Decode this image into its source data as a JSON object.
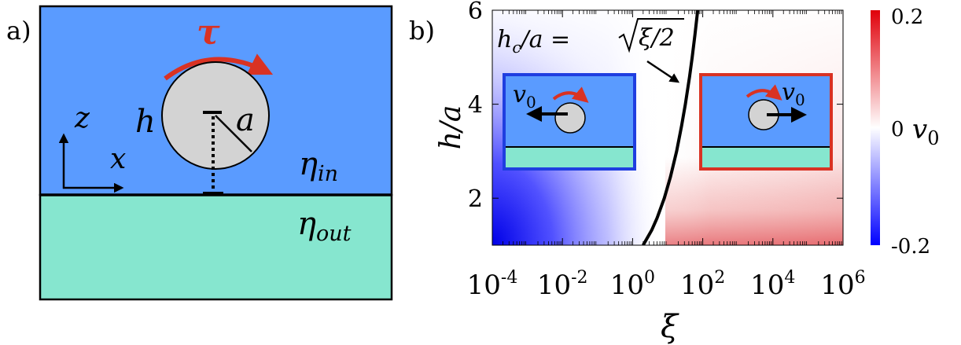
{
  "panel_a": {
    "label": "a)",
    "torque": "τ",
    "height": "h",
    "radius": "a",
    "axis_z": "z",
    "axis_x": "x",
    "eta_in_base": "η",
    "eta_in_sub": "in",
    "eta_out_base": "η",
    "eta_out_sub": "out",
    "colors": {
      "upper_fluid": "#5a9bff",
      "lower_fluid": "#86e6cf",
      "sphere": "#d3d3d3",
      "torque_arrow": "#d93223"
    }
  },
  "panel_b": {
    "label": "b)",
    "curve_label_lhs": "h",
    "curve_label_sub": "c",
    "curve_label_mid": "/a = ",
    "curve_label_rad": "ξ/2",
    "inset_left_velocity_base": "v",
    "inset_left_velocity_sub": "0",
    "inset_right_velocity_base": "v",
    "inset_right_velocity_sub": "0",
    "colorbar": {
      "title_base": "v",
      "title_sub": "0",
      "tick_max": "0.2",
      "tick_mid": "0",
      "tick_min": "-0.2",
      "range": [
        -0.2,
        0.2
      ],
      "colors": {
        "negative": "#0000ff",
        "zero": "#ffffff",
        "positive": "#e0000a"
      }
    }
  },
  "chart_data": {
    "type": "heatmap",
    "title": "",
    "xlabel": "ξ",
    "ylabel": "h/a",
    "x_scale": "log",
    "xlim": [
      0.0001,
      1000000
    ],
    "ylim": [
      1,
      6
    ],
    "xticks": [
      {
        "value": 0.0001,
        "base": "10",
        "exp": "-4"
      },
      {
        "value": 0.01,
        "base": "10",
        "exp": "-2"
      },
      {
        "value": 1,
        "base": "10",
        "exp": "0"
      },
      {
        "value": 100,
        "base": "10",
        "exp": "2"
      },
      {
        "value": 10000,
        "base": "10",
        "exp": "4"
      },
      {
        "value": 1000000,
        "base": "10",
        "exp": "6"
      }
    ],
    "yticks": [
      {
        "value": 2,
        "label": "2"
      },
      {
        "value": 4,
        "label": "4"
      },
      {
        "value": 6,
        "label": "6"
      }
    ],
    "series": [
      {
        "type": "line",
        "points": [
          {
            "x": 2,
            "y": 1
          },
          {
            "x": 3.5,
            "y": 1.32
          },
          {
            "x": 5,
            "y": 1.58
          },
          {
            "x": 8,
            "y": 2
          },
          {
            "x": 12,
            "y": 2.45
          },
          {
            "x": 18,
            "y": 3
          },
          {
            "x": 25,
            "y": 3.54
          },
          {
            "x": 32,
            "y": 4
          },
          {
            "x": 42,
            "y": 4.58
          },
          {
            "x": 50,
            "y": 5
          },
          {
            "x": 60,
            "y": 5.48
          },
          {
            "x": 72,
            "y": 6
          }
        ]
      }
    ],
    "colorscale_range": [
      -0.2,
      0.2
    ]
  }
}
